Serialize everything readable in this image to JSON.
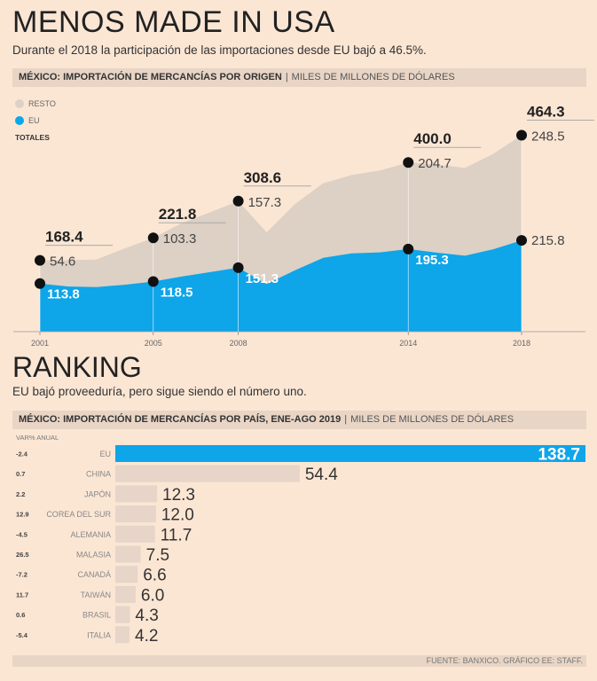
{
  "header": {
    "title": "MENOS MADE IN USA",
    "subtitle": "Durante el 2018 la participación de las importaciones desde EU bajó a 46.5%."
  },
  "area_section": {
    "heading": "MÉXICO: IMPORTACIÓN DE MERCANCÍAS POR ORIGEN",
    "unit": "MILES DE MILLONES DE DÓLARES",
    "legend": {
      "resto": "RESTO",
      "eu": "EU",
      "totales": "TOTALES"
    }
  },
  "ranking_section": {
    "title": "RANKING",
    "subtitle": "EU bajó proveeduría, pero sigue siendo el número uno.",
    "heading": "MÉXICO: IMPORTACIÓN DE MERCANCÍAS POR PAÍS, ENE-AGO 2019",
    "unit": "MILES DE MILLONES DE DÓLARES",
    "var_label": "VAR% ANUAL"
  },
  "footer": {
    "source": "FUENTE: BANXICO. GRÁFICO EE: STAFF."
  },
  "colors": {
    "eu": "#0ea5e9",
    "resto": "#ddd0c4",
    "background": "#fbe6d4",
    "bar": "#e6d5c8",
    "band": "#e9d5c5"
  },
  "chart_data": [
    {
      "type": "area",
      "title": "MÉXICO: IMPORTACIÓN DE MERCANCÍAS POR ORIGEN",
      "ylabel": "MILES DE MILLONES DE DÓLARES",
      "x": [
        2001,
        2002,
        2003,
        2004,
        2005,
        2006,
        2007,
        2008,
        2009,
        2010,
        2011,
        2012,
        2013,
        2014,
        2015,
        2016,
        2017,
        2018
      ],
      "xticks": [
        "2001",
        "2005",
        "2008",
        "2014",
        "2018"
      ],
      "series": [
        {
          "name": "EU",
          "values": [
            113.8,
            106.6,
            105.4,
            110.8,
            118.5,
            130.3,
            140.6,
            151.3,
            112.4,
            145.0,
            174.4,
            185.1,
            187.3,
            195.3,
            186.8,
            179.5,
            194.6,
            215.8
          ]
        },
        {
          "name": "RESTO",
          "values": [
            54.6,
            62.1,
            65.1,
            86.0,
            103.3,
            126.0,
            141.3,
            157.3,
            122.3,
            156.5,
            176.4,
            185.1,
            193.7,
            204.7,
            208.5,
            207.6,
            225.7,
            248.5
          ]
        }
      ],
      "totals": [
        168.4,
        168.7,
        170.5,
        196.8,
        221.8,
        256.3,
        281.9,
        308.6,
        234.7,
        301.5,
        350.8,
        370.2,
        381.0,
        400.0,
        395.2,
        387.1,
        420.3,
        464.3
      ],
      "labels": [
        {
          "year": 2001,
          "total": "168.4",
          "resto": "54.6",
          "eu": "113.8"
        },
        {
          "year": 2005,
          "total": "221.8",
          "resto": "103.3",
          "eu": "118.5"
        },
        {
          "year": 2008,
          "total": "308.6",
          "resto": "157.3",
          "eu": "151.3"
        },
        {
          "year": 2014,
          "total": "400.0",
          "resto": "204.7",
          "eu": "195.3"
        },
        {
          "year": 2018,
          "total": "464.3",
          "resto": "248.5",
          "eu": "215.8"
        }
      ],
      "ylim": [
        0,
        480
      ]
    },
    {
      "type": "bar",
      "orientation": "horizontal",
      "title": "MÉXICO: IMPORTACIÓN DE MERCANCÍAS POR PAÍS, ENE-AGO 2019",
      "categories": [
        "EU",
        "CHINA",
        "JAPÓN",
        "COREA DEL SUR",
        "ALEMANIA",
        "MALASIA",
        "CANADÁ",
        "TAIWÁN",
        "BRASIL",
        "ITALIA"
      ],
      "values": [
        138.7,
        54.4,
        12.3,
        12.0,
        11.7,
        7.5,
        6.6,
        6.0,
        4.3,
        4.2
      ],
      "value_labels": [
        "138.7",
        "54.4",
        "12.3",
        "12.0",
        "11.7",
        "7.5",
        "6.6",
        "6.0",
        "4.3",
        "4.2"
      ],
      "var_pct": [
        "-2.4",
        "0.7",
        "2.2",
        "12.9",
        "-4.5",
        "26.5",
        "-7.2",
        "11.7",
        "0.6",
        "-5.4"
      ],
      "xlim": [
        0,
        138.7
      ]
    }
  ]
}
